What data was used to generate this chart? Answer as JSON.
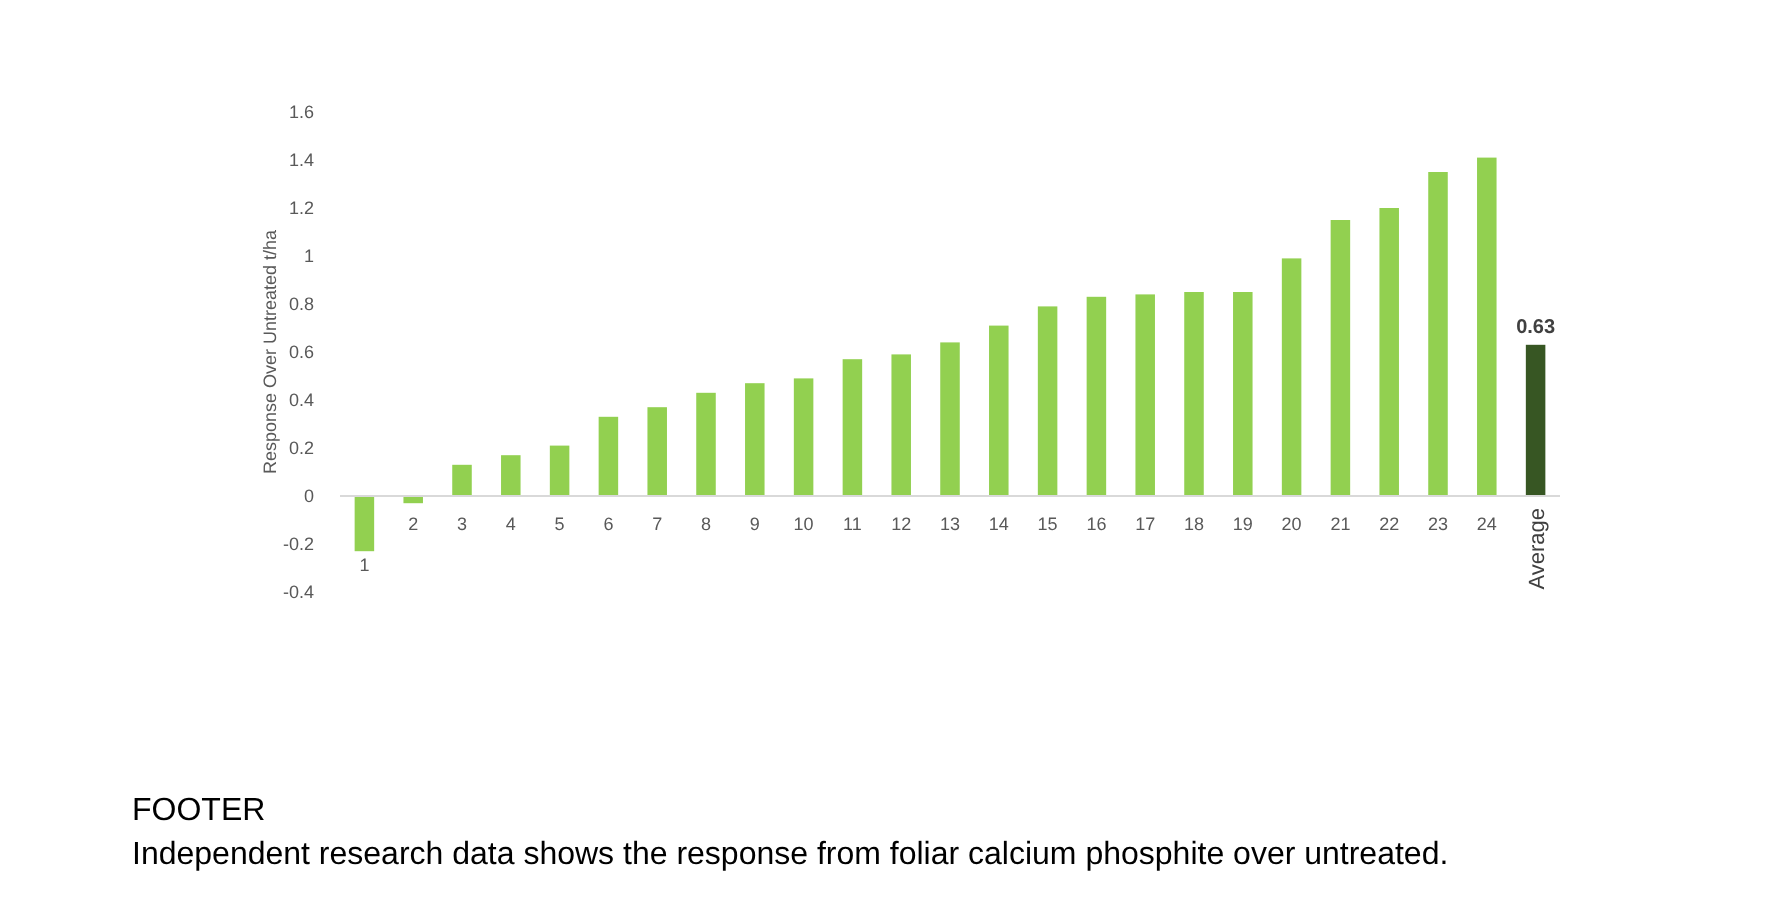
{
  "chart_data": {
    "type": "bar",
    "ylabel": "Response Over Untreated t/ha",
    "categories": [
      "1",
      "2",
      "3",
      "4",
      "5",
      "6",
      "7",
      "8",
      "9",
      "10",
      "11",
      "12",
      "13",
      "14",
      "15",
      "16",
      "17",
      "18",
      "19",
      "20",
      "21",
      "22",
      "23",
      "24",
      "Average"
    ],
    "values": [
      -0.23,
      -0.03,
      0.13,
      0.17,
      0.21,
      0.33,
      0.37,
      0.43,
      0.47,
      0.49,
      0.57,
      0.59,
      0.64,
      0.71,
      0.79,
      0.83,
      0.84,
      0.85,
      0.85,
      0.99,
      1.15,
      1.2,
      1.35,
      1.41,
      0.63
    ],
    "colors": [
      "#92d050",
      "#92d050",
      "#92d050",
      "#92d050",
      "#92d050",
      "#92d050",
      "#92d050",
      "#92d050",
      "#92d050",
      "#92d050",
      "#92d050",
      "#92d050",
      "#92d050",
      "#92d050",
      "#92d050",
      "#92d050",
      "#92d050",
      "#92d050",
      "#92d050",
      "#92d050",
      "#92d050",
      "#92d050",
      "#92d050",
      "#92d050",
      "#375623"
    ],
    "value_labels": [
      null,
      null,
      null,
      null,
      null,
      null,
      null,
      null,
      null,
      null,
      null,
      null,
      null,
      null,
      null,
      null,
      null,
      null,
      null,
      null,
      null,
      null,
      null,
      null,
      "0.63"
    ],
    "ylim": [
      -0.4,
      1.6
    ],
    "yticks": [
      -0.4,
      -0.2,
      0,
      0.2,
      0.4,
      0.6,
      0.8,
      1,
      1.2,
      1.4,
      1.6
    ],
    "annotations": [
      "FOOTER",
      "Independent research data shows the response from foliar calcium phosphite over untreated."
    ]
  }
}
